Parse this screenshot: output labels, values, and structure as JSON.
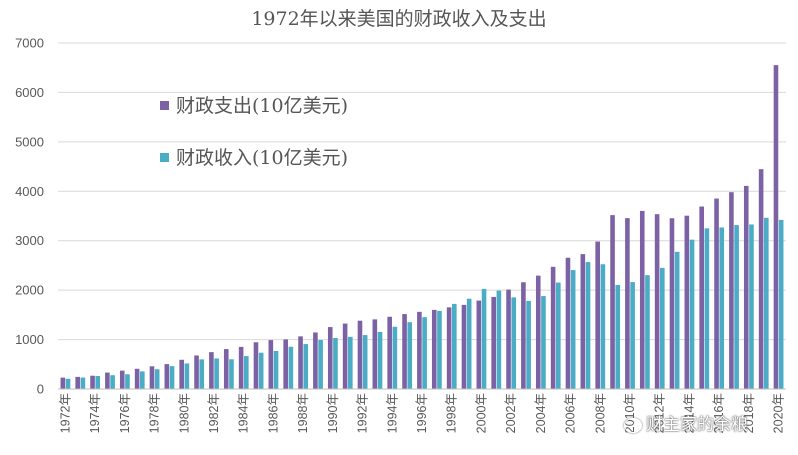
{
  "chart_data": {
    "type": "bar",
    "title": "1972年以来美国的财政收入及支出",
    "ylim": [
      0,
      7000
    ],
    "yticks": [
      0,
      1000,
      2000,
      3000,
      4000,
      5000,
      6000,
      7000
    ],
    "grid": true,
    "legend_position": "top-left",
    "categories": [
      "1972年",
      "1973年",
      "1974年",
      "1975年",
      "1976年",
      "1977年",
      "1978年",
      "1979年",
      "1980年",
      "1981年",
      "1982年",
      "1983年",
      "1984年",
      "1985年",
      "1986年",
      "1987年",
      "1988年",
      "1989年",
      "1990年",
      "1991年",
      "1992年",
      "1993年",
      "1994年",
      "1995年",
      "1996年",
      "1997年",
      "1998年",
      "1999年",
      "2000年",
      "2001年",
      "2002年",
      "2003年",
      "2004年",
      "2005年",
      "2006年",
      "2007年",
      "2008年",
      "2009年",
      "2010年",
      "2011年",
      "2012年",
      "2013年",
      "2014年",
      "2015年",
      "2016年",
      "2017年",
      "2018年",
      "2019年",
      "2020年"
    ],
    "xtick_labels": [
      "1972年",
      "1974年",
      "1976年",
      "1978年",
      "1980年",
      "1982年",
      "1984年",
      "1986年",
      "1988年",
      "1990年",
      "1992年",
      "1994年",
      "1996年",
      "1998年",
      "2000年",
      "2002年",
      "2004年",
      "2006年",
      "2008年",
      "2010年",
      "2012年",
      "2014年",
      "2016年",
      "2018年",
      "2020年"
    ],
    "series": [
      {
        "name": "财政支出(10亿美元)",
        "color": "#7c62a4",
        "values": [
          230,
          245,
          269,
          332,
          372,
          409,
          459,
          504,
          591,
          678,
          746,
          808,
          852,
          946,
          990,
          1004,
          1065,
          1144,
          1253,
          1324,
          1382,
          1409,
          1462,
          1516,
          1561,
          1601,
          1652,
          1702,
          1789,
          1863,
          2011,
          2160,
          2293,
          2472,
          2655,
          2729,
          2983,
          3518,
          3457,
          3603,
          3537,
          3455,
          3506,
          3692,
          3853,
          3982,
          4109,
          4447,
          6552
        ]
      },
      {
        "name": "财政收入(10亿美元)",
        "color": "#4bacc6",
        "values": [
          207,
          231,
          263,
          279,
          298,
          356,
          400,
          463,
          517,
          599,
          618,
          601,
          666,
          734,
          769,
          854,
          909,
          991,
          1032,
          1055,
          1091,
          1154,
          1259,
          1352,
          1453,
          1579,
          1722,
          1827,
          2025,
          1991,
          1853,
          1782,
          1880,
          2153,
          2406,
          2568,
          2524,
          2105,
          2163,
          2303,
          2450,
          2775,
          3021,
          3250,
          3268,
          3316,
          3329,
          3463,
          3421
        ]
      }
    ]
  },
  "watermark": {
    "text": "财主家的余粮",
    "icon": "wechat-icon"
  }
}
